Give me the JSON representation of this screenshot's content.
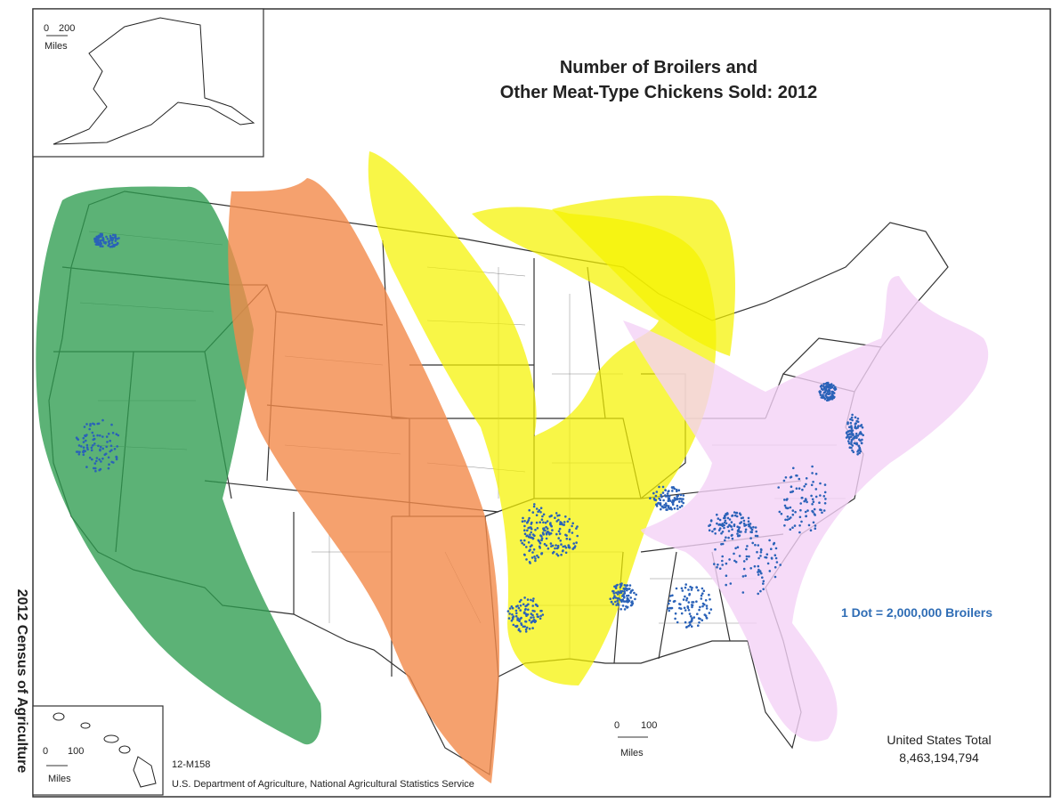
{
  "title": [
    "Number of Broilers and",
    "Other Meat-Type Chickens Sold:  2012"
  ],
  "side_label": "2012 Census of Agriculture",
  "legend": "1 Dot = 2,000,000 Broilers",
  "total": {
    "label": "United States Total",
    "value": "8,463,194,794"
  },
  "footer": {
    "code": "12-M158",
    "source": "U.S. Department of Agriculture, National Agricultural Statistics Service"
  },
  "scales": {
    "alaska": {
      "start": 0,
      "end": 200,
      "unit": "Miles"
    },
    "hawaii": {
      "start": 0,
      "end": 100,
      "unit": "Miles"
    },
    "main": {
      "start": 0,
      "end": 100,
      "unit": "Miles"
    }
  }
}
